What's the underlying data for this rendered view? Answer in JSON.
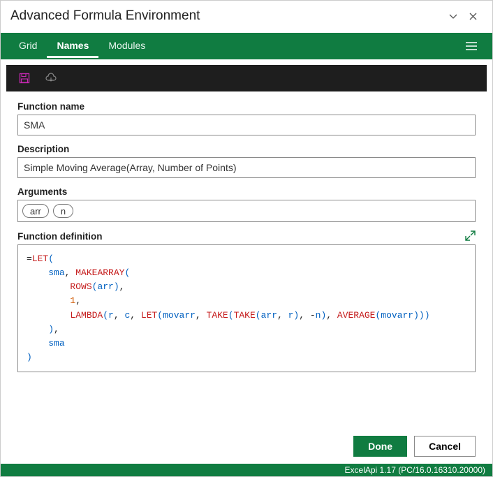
{
  "colors": {
    "brand": "#107c41",
    "toolbar_bg": "#1e1e1e",
    "border": "#8a8a8a",
    "save_accent": "#c828b4",
    "code_fn": "#c41919",
    "code_var": "#0060c0",
    "code_num": "#d05800"
  },
  "titlebar": {
    "title": "Advanced Formula Environment"
  },
  "tabs": {
    "items": [
      {
        "label": "Grid",
        "active": false
      },
      {
        "label": "Names",
        "active": true
      },
      {
        "label": "Modules",
        "active": false
      }
    ]
  },
  "icons": {
    "save": "save-icon",
    "cloud": "cloud-sync-icon",
    "menu": "hamburger-icon",
    "minimize": "chevron-down-icon",
    "close": "close-icon",
    "expand": "expand-icon"
  },
  "form": {
    "function_name_label": "Function name",
    "function_name_value": "SMA",
    "description_label": "Description",
    "description_value": "Simple Moving Average(Array, Number of Points)",
    "arguments_label": "Arguments",
    "arguments": [
      "arr",
      "n"
    ],
    "definition_label": "Function definition",
    "definition_tokens": [
      [
        {
          "t": "op",
          "v": "="
        },
        {
          "t": "fn",
          "v": "LET"
        },
        {
          "t": "p",
          "v": "("
        }
      ],
      [
        {
          "t": "sp",
          "v": "    "
        },
        {
          "t": "var",
          "v": "sma"
        },
        {
          "t": "op",
          "v": ", "
        },
        {
          "t": "fn",
          "v": "MAKEARRAY"
        },
        {
          "t": "p",
          "v": "("
        }
      ],
      [
        {
          "t": "sp",
          "v": "        "
        },
        {
          "t": "fn",
          "v": "ROWS"
        },
        {
          "t": "p",
          "v": "("
        },
        {
          "t": "var",
          "v": "arr"
        },
        {
          "t": "p",
          "v": ")"
        },
        {
          "t": "op",
          "v": ","
        }
      ],
      [
        {
          "t": "sp",
          "v": "        "
        },
        {
          "t": "num",
          "v": "1"
        },
        {
          "t": "op",
          "v": ","
        }
      ],
      [
        {
          "t": "sp",
          "v": "        "
        },
        {
          "t": "fn",
          "v": "LAMBDA"
        },
        {
          "t": "p",
          "v": "("
        },
        {
          "t": "var",
          "v": "r"
        },
        {
          "t": "op",
          "v": ", "
        },
        {
          "t": "var",
          "v": "c"
        },
        {
          "t": "op",
          "v": ", "
        },
        {
          "t": "fn",
          "v": "LET"
        },
        {
          "t": "p",
          "v": "("
        },
        {
          "t": "var",
          "v": "movarr"
        },
        {
          "t": "op",
          "v": ", "
        },
        {
          "t": "fn",
          "v": "TAKE"
        },
        {
          "t": "p",
          "v": "("
        },
        {
          "t": "fn",
          "v": "TAKE"
        },
        {
          "t": "p",
          "v": "("
        },
        {
          "t": "var",
          "v": "arr"
        },
        {
          "t": "op",
          "v": ", "
        },
        {
          "t": "var",
          "v": "r"
        },
        {
          "t": "p",
          "v": ")"
        },
        {
          "t": "op",
          "v": ", -"
        },
        {
          "t": "var",
          "v": "n"
        },
        {
          "t": "p",
          "v": ")"
        },
        {
          "t": "op",
          "v": ", "
        },
        {
          "t": "fn",
          "v": "AVERAGE"
        },
        {
          "t": "p",
          "v": "("
        },
        {
          "t": "var",
          "v": "movarr"
        },
        {
          "t": "p",
          "v": ")))"
        }
      ],
      [
        {
          "t": "sp",
          "v": "    "
        },
        {
          "t": "p",
          "v": ")"
        },
        {
          "t": "op",
          "v": ","
        }
      ],
      [
        {
          "t": "sp",
          "v": "    "
        },
        {
          "t": "var",
          "v": "sma"
        }
      ],
      [
        {
          "t": "p",
          "v": ")"
        }
      ]
    ]
  },
  "buttons": {
    "done": "Done",
    "cancel": "Cancel"
  },
  "statusbar": {
    "text": "ExcelApi 1.17 (PC/16.0.16310.20000)"
  }
}
